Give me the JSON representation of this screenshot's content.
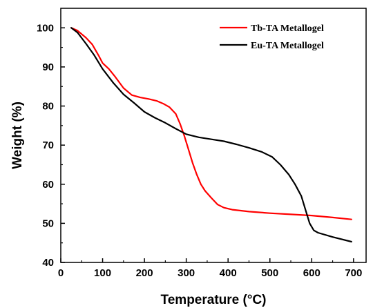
{
  "chart_data": {
    "type": "line",
    "title": "",
    "xlabel": "Temperature (°C)",
    "ylabel": "Weight (%)",
    "xlim": [
      0,
      730
    ],
    "ylim": [
      40,
      105
    ],
    "xticks": [
      0,
      100,
      200,
      300,
      400,
      500,
      600,
      700
    ],
    "yticks": [
      40,
      50,
      60,
      70,
      80,
      90,
      100
    ],
    "grid": false,
    "legend_position": "top-right",
    "series": [
      {
        "name": "Tb-TA Metallogel",
        "color": "#ff0000",
        "x": [
          25,
          40,
          60,
          75,
          90,
          100,
          115,
          130,
          150,
          170,
          190,
          210,
          230,
          245,
          260,
          275,
          285,
          295,
          305,
          315,
          325,
          335,
          345,
          360,
          375,
          390,
          410,
          450,
          500,
          550,
          600,
          650,
          695
        ],
        "y": [
          100,
          99.3,
          97.5,
          95.8,
          93,
          91,
          89.5,
          87.5,
          84.6,
          82.8,
          82.2,
          81.8,
          81.3,
          80.6,
          79.7,
          78,
          75.5,
          72.5,
          69,
          65.5,
          62.5,
          60,
          58.3,
          56.5,
          54.8,
          54,
          53.5,
          53,
          52.6,
          52.3,
          52,
          51.5,
          51
        ]
      },
      {
        "name": "Eu-TA Metallogel",
        "color": "#000000",
        "x": [
          25,
          40,
          60,
          80,
          100,
          125,
          150,
          175,
          200,
          225,
          250,
          275,
          300,
          330,
          360,
          390,
          420,
          450,
          480,
          505,
          525,
          545,
          560,
          575,
          585,
          595,
          605,
          615,
          650,
          695
        ],
        "y": [
          100,
          98.8,
          96,
          93,
          89.5,
          86,
          83,
          80.8,
          78.5,
          77,
          75.7,
          74.2,
          72.8,
          72,
          71.5,
          71,
          70.2,
          69.3,
          68.3,
          67,
          65,
          62.5,
          60,
          57,
          53.5,
          50,
          48.2,
          47.6,
          46.5,
          45.3
        ]
      }
    ]
  }
}
